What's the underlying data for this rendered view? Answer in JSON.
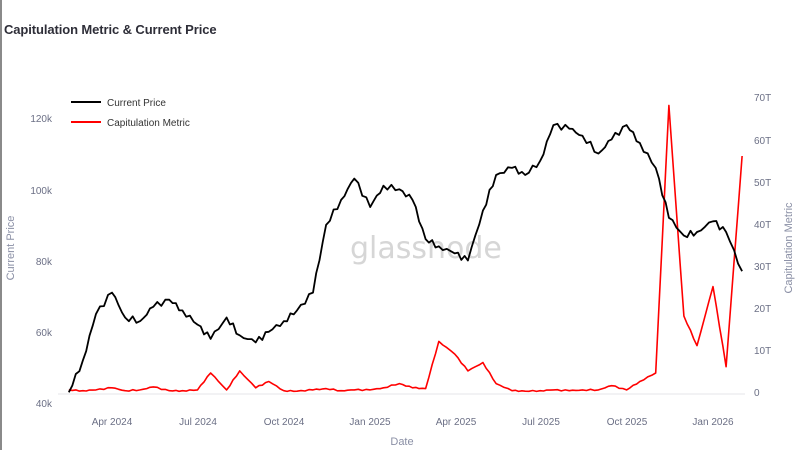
{
  "title": "Capitulation Metric & Current Price",
  "watermark": "glassnode",
  "legend": [
    {
      "label": "Current Price",
      "color": "#000000"
    },
    {
      "label": "Capitulation Metric",
      "color": "#ff0000"
    }
  ],
  "axes": {
    "x_label": "Date",
    "y_left_label": "Current Price",
    "y_right_label": "Capitulation Metric",
    "x_ticks": [
      "Apr 2024",
      "Jul 2024",
      "Oct 2024",
      "Jan 2025",
      "Apr 2025",
      "Jul 2025",
      "Oct 2025",
      "Jan 2026"
    ],
    "y_left_ticks": [
      "40k",
      "60k",
      "80k",
      "100k",
      "120k"
    ],
    "y_right_ticks": [
      "0",
      "10T",
      "20T",
      "30T",
      "40T",
      "50T",
      "60T",
      "70T"
    ]
  },
  "chart_data": {
    "type": "line",
    "title": "Capitulation Metric & Current Price",
    "xlabel": "Date",
    "ylabel": "Current Price",
    "y2label": "Capitulation Metric",
    "ylim": [
      40000,
      125000
    ],
    "y2lim": [
      0,
      70
    ],
    "y2unit": "T",
    "grid": false,
    "legend_position": "top-left",
    "x": [
      "2024-02-15",
      "2024-03-01",
      "2024-03-15",
      "2024-04-01",
      "2024-04-15",
      "2024-05-01",
      "2024-05-15",
      "2024-06-01",
      "2024-06-15",
      "2024-07-01",
      "2024-07-15",
      "2024-08-01",
      "2024-08-15",
      "2024-09-01",
      "2024-09-15",
      "2024-10-01",
      "2024-10-15",
      "2024-11-01",
      "2024-11-15",
      "2024-12-01",
      "2024-12-15",
      "2025-01-01",
      "2025-01-15",
      "2025-02-01",
      "2025-02-15",
      "2025-03-01",
      "2025-03-15",
      "2025-04-01",
      "2025-04-15",
      "2025-05-01",
      "2025-05-15",
      "2025-06-01",
      "2025-06-15",
      "2025-07-01",
      "2025-07-15",
      "2025-08-01",
      "2025-08-15",
      "2025-09-01",
      "2025-09-15",
      "2025-10-01",
      "2025-10-15",
      "2025-11-01",
      "2025-11-15",
      "2025-12-01",
      "2025-12-15",
      "2026-01-01",
      "2026-01-15",
      "2026-02-01"
    ],
    "series": [
      {
        "name": "Current Price",
        "axis": "left",
        "color": "#000000",
        "values": [
          43000,
          52000,
          65000,
          71000,
          64000,
          63000,
          67000,
          69000,
          66000,
          62000,
          58000,
          64000,
          59000,
          57000,
          60000,
          63000,
          66000,
          71000,
          90000,
          97000,
          103000,
          95000,
          101000,
          100000,
          97000,
          86000,
          84000,
          82000,
          80000,
          94000,
          104000,
          106000,
          104000,
          108000,
          118000,
          117000,
          115000,
          110000,
          114000,
          118000,
          113000,
          106000,
          92000,
          87000,
          88000,
          91000,
          88000,
          77000
        ]
      },
      {
        "name": "Capitulation Metric",
        "axis": "right",
        "color": "#ff0000",
        "values": [
          0.5,
          0.3,
          0.5,
          1.0,
          0.3,
          0.5,
          1.2,
          0.3,
          0.3,
          0.5,
          4.5,
          0.5,
          5.0,
          1.0,
          2.5,
          0.3,
          0.2,
          0.5,
          0.8,
          0.3,
          0.5,
          0.5,
          1.0,
          2.0,
          1.0,
          0.8,
          12,
          9,
          5,
          7,
          2,
          0.3,
          0.2,
          0.3,
          0.5,
          0.3,
          0.5,
          0.5,
          1.5,
          0.5,
          2.5,
          4.5,
          68,
          18,
          11,
          25,
          6,
          56
        ]
      }
    ]
  }
}
